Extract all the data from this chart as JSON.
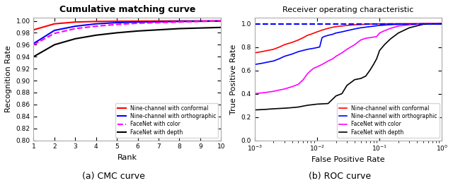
{
  "cmc_title": "Cumulative matching curve",
  "cmc_xlabel": "Rank",
  "cmc_ylabel": "Recognition Rate",
  "cmc_xlim": [
    1,
    10
  ],
  "cmc_ylim": [
    0.8,
    1.005
  ],
  "cmc_yticks": [
    0.8,
    0.82,
    0.84,
    0.86,
    0.88,
    0.9,
    0.92,
    0.94,
    0.96,
    0.98,
    1.0
  ],
  "cmc_xticks": [
    1,
    2,
    3,
    4,
    5,
    6,
    7,
    8,
    9,
    10
  ],
  "cmc_conformal": [
    0.985,
    0.995,
    0.998,
    0.999,
    0.9993,
    0.9995,
    0.9997,
    0.9998,
    0.9999,
    1.0
  ],
  "cmc_orthographic": [
    0.962,
    0.984,
    0.991,
    0.995,
    0.997,
    0.998,
    0.9985,
    0.999,
    0.9993,
    0.9996
  ],
  "cmc_color": [
    0.96,
    0.979,
    0.987,
    0.991,
    0.994,
    0.996,
    0.997,
    0.998,
    0.999,
    1.0
  ],
  "cmc_depth": [
    0.94,
    0.96,
    0.97,
    0.976,
    0.98,
    0.983,
    0.985,
    0.987,
    0.988,
    0.989
  ],
  "roc_title": "Receiver operating characteristic",
  "roc_xlabel": "False Positive Rate",
  "roc_ylabel": "True Positive Rate",
  "roc_xlim": [
    0.001,
    1.0
  ],
  "roc_ylim": [
    0.0,
    1.05
  ],
  "roc_yticks": [
    0.0,
    0.2,
    0.4,
    0.6,
    0.8,
    1.0
  ],
  "roc_fpr_conformal": [
    0.001,
    0.0013,
    0.0016,
    0.002,
    0.0025,
    0.003,
    0.004,
    0.005,
    0.006,
    0.007,
    0.008,
    0.01,
    0.012,
    0.015,
    0.018,
    0.02,
    0.025,
    0.03,
    0.04,
    0.05,
    0.06,
    0.07,
    0.08,
    0.1,
    0.12,
    0.15,
    0.2,
    0.3,
    0.5,
    1.0
  ],
  "roc_tpr_conformal": [
    0.75,
    0.76,
    0.77,
    0.78,
    0.8,
    0.82,
    0.84,
    0.86,
    0.88,
    0.9,
    0.91,
    0.93,
    0.945,
    0.96,
    0.97,
    0.975,
    0.98,
    0.985,
    0.99,
    0.993,
    0.995,
    0.997,
    0.998,
    0.999,
    0.9993,
    0.9996,
    0.9998,
    1.0,
    1.0,
    1.0
  ],
  "roc_fpr_orthographic": [
    0.001,
    0.0013,
    0.0016,
    0.002,
    0.0025,
    0.003,
    0.004,
    0.005,
    0.007,
    0.009,
    0.011,
    0.012,
    0.013,
    0.015,
    0.018,
    0.02,
    0.025,
    0.03,
    0.04,
    0.05,
    0.07,
    0.1,
    0.15,
    0.3,
    0.5,
    1.0
  ],
  "roc_tpr_orthographic": [
    0.65,
    0.66,
    0.67,
    0.68,
    0.7,
    0.72,
    0.74,
    0.76,
    0.78,
    0.79,
    0.8,
    0.88,
    0.89,
    0.9,
    0.91,
    0.92,
    0.93,
    0.94,
    0.955,
    0.965,
    0.975,
    0.985,
    0.992,
    0.998,
    1.0,
    1.0
  ],
  "roc_fpr_color": [
    0.001,
    0.0015,
    0.002,
    0.003,
    0.004,
    0.005,
    0.006,
    0.007,
    0.008,
    0.009,
    0.01,
    0.012,
    0.015,
    0.018,
    0.02,
    0.025,
    0.03,
    0.04,
    0.05,
    0.06,
    0.07,
    0.08,
    0.09,
    0.1,
    0.12,
    0.15,
    0.2,
    0.3,
    0.5,
    1.0
  ],
  "roc_tpr_color": [
    0.4,
    0.41,
    0.42,
    0.44,
    0.46,
    0.48,
    0.52,
    0.57,
    0.6,
    0.62,
    0.63,
    0.65,
    0.68,
    0.7,
    0.72,
    0.75,
    0.78,
    0.82,
    0.86,
    0.875,
    0.88,
    0.885,
    0.89,
    0.92,
    0.94,
    0.96,
    0.98,
    0.99,
    1.0,
    1.0
  ],
  "roc_fpr_depth": [
    0.001,
    0.0015,
    0.002,
    0.003,
    0.004,
    0.005,
    0.007,
    0.01,
    0.015,
    0.02,
    0.025,
    0.03,
    0.04,
    0.05,
    0.06,
    0.07,
    0.08,
    0.09,
    0.1,
    0.12,
    0.15,
    0.2,
    0.3,
    0.5,
    1.0
  ],
  "roc_tpr_depth": [
    0.26,
    0.265,
    0.27,
    0.275,
    0.28,
    0.285,
    0.3,
    0.31,
    0.315,
    0.38,
    0.4,
    0.47,
    0.52,
    0.53,
    0.55,
    0.6,
    0.65,
    0.7,
    0.77,
    0.82,
    0.87,
    0.92,
    0.965,
    0.995,
    1.0
  ],
  "color_conformal": "#ff0000",
  "color_orthographic": "#0000ff",
  "color_facenet_color": "#ff00ff",
  "color_facenet_depth": "#000000",
  "legend_conformal": "Nine-channel with conformal",
  "legend_orthographic": "Nine-channel with orthographic",
  "legend_color": "FaceNet with color",
  "legend_depth": "FaceNet with depth",
  "caption_cmc": "(a) CMC curve",
  "caption_roc": "(b) ROC curve",
  "spine_color": "#aaaaaa",
  "bg_color": "#ffffff"
}
